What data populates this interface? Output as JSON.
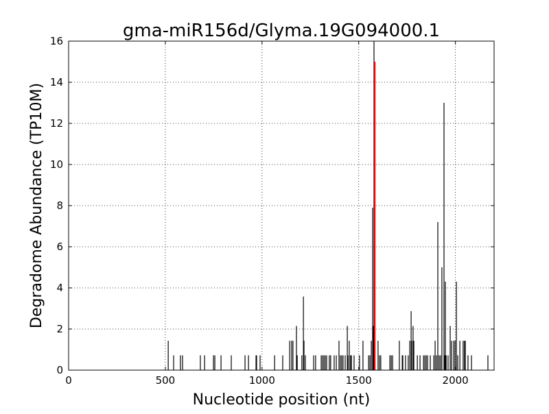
{
  "chart_data": {
    "type": "bar",
    "title": "gma-miR156d/Glyma.19G094000.1",
    "xlabel": "Nucleotide position (nt)",
    "ylabel": "Degradome Abundance (TP10M)",
    "xlim": [
      0,
      2200
    ],
    "ylim": [
      0,
      16
    ],
    "xticks": [
      "0",
      "500",
      "1000",
      "1500",
      "2000"
    ],
    "yticks": [
      "0",
      "2",
      "4",
      "6",
      "8",
      "10",
      "12",
      "14",
      "16"
    ],
    "grid": true,
    "colors": {
      "default": "#000000",
      "highlight": "#ff0000"
    },
    "series": [
      {
        "x": [
          515,
          543,
          578,
          589,
          681,
          703,
          749,
          756,
          788,
          841,
          912,
          930,
          969,
          972,
          990,
          1065,
          1107,
          1143,
          1153,
          1160,
          1178,
          1182,
          1206,
          1214,
          1217,
          1224,
          1267,
          1277,
          1306,
          1313,
          1320,
          1327,
          1334,
          1348,
          1355,
          1373,
          1384,
          1398,
          1405,
          1412,
          1419,
          1430,
          1441,
          1444,
          1451,
          1458,
          1462,
          1476,
          1504,
          1522,
          1551,
          1558,
          1565,
          1572,
          1575,
          1579,
          1600,
          1607,
          1614,
          1661,
          1668,
          1675,
          1710,
          1725,
          1728,
          1742,
          1756,
          1764,
          1771,
          1774,
          1781,
          1785,
          1803,
          1817,
          1835,
          1842,
          1849,
          1856,
          1870,
          1888,
          1895,
          1902,
          1909,
          1916,
          1923,
          1930,
          1941,
          1945,
          1948,
          1952,
          1962,
          1973,
          1980,
          1991,
          1998,
          2005,
          2012,
          2023,
          2040,
          2047,
          2051,
          2065,
          2083,
          2168
        ],
        "y": [
          1.43,
          0.72,
          0.72,
          0.72,
          0.72,
          0.72,
          0.72,
          0.72,
          0.72,
          0.72,
          0.72,
          0.72,
          0.72,
          0.72,
          0.72,
          0.72,
          0.72,
          1.43,
          1.43,
          1.43,
          2.15,
          0.72,
          0.72,
          3.58,
          1.43,
          0.72,
          0.72,
          0.72,
          0.72,
          0.72,
          0.72,
          0.72,
          0.72,
          0.72,
          0.72,
          0.72,
          0.72,
          1.43,
          0.72,
          0.72,
          0.72,
          0.72,
          2.15,
          0.72,
          1.43,
          0.72,
          0.72,
          0.72,
          0.72,
          1.43,
          0.72,
          0.72,
          1.43,
          7.9,
          2.15,
          16,
          1.43,
          0.72,
          0.72,
          0.72,
          0.72,
          0.72,
          1.43,
          0.72,
          0.72,
          0.72,
          0.72,
          1.43,
          2.87,
          1.43,
          2.15,
          1.43,
          0.72,
          0.72,
          0.72,
          0.72,
          0.72,
          0.72,
          0.72,
          0.72,
          1.43,
          0.72,
          7.2,
          0.72,
          0.72,
          5.0,
          13.0,
          0.72,
          4.3,
          0.72,
          0.72,
          2.15,
          1.43,
          1.43,
          1.43,
          4.3,
          0.72,
          1.43,
          1.43,
          1.43,
          1.43,
          0.72,
          0.72,
          0.72
        ]
      },
      {
        "x": [
          1583
        ],
        "y": [
          15
        ]
      }
    ]
  }
}
